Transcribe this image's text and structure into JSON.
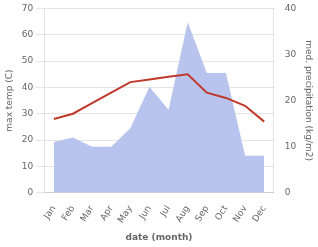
{
  "chart_data": {
    "type": "line",
    "categories": [
      "Jan",
      "Feb",
      "Mar",
      "Apr",
      "May",
      "Jun",
      "Jul",
      "Aug",
      "Sep",
      "Oct",
      "Nov",
      "Dec"
    ],
    "series": [
      {
        "type": "area",
        "axis": "y2",
        "color": "#b8c4ee",
        "values": [
          11,
          12,
          10,
          10,
          14,
          23,
          18,
          37,
          26,
          26,
          8,
          8
        ]
      },
      {
        "type": "line",
        "color": "#c0392b",
        "values": [
          28,
          30,
          34,
          38,
          42,
          43,
          44,
          45,
          38,
          36,
          33,
          27
        ]
      }
    ],
    "xlabel": "date (month)",
    "ylabel": "max temp (C)",
    "y2label": "med. precipitation (kg/m2)",
    "ylim": [
      0,
      70
    ],
    "yticks": [
      0,
      10,
      20,
      30,
      40,
      50,
      60,
      70
    ],
    "y2lim": [
      0,
      40
    ],
    "y2ticks": [
      0,
      10,
      20,
      30,
      40
    ],
    "grid": true
  }
}
